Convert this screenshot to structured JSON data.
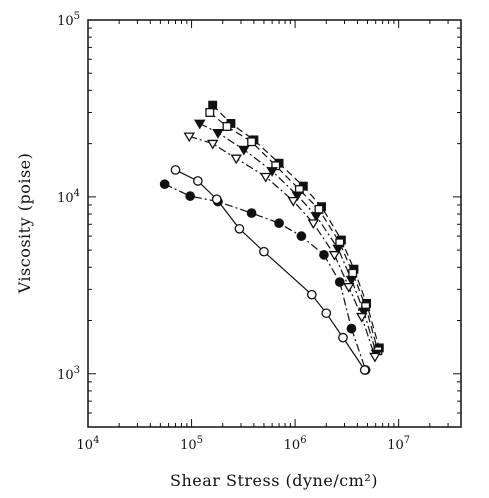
{
  "chart_data": {
    "type": "scatter",
    "xlabel": "Shear Stress (dyne/cm²)",
    "ylabel": "Viscosity (poise)",
    "xscale": "log",
    "yscale": "log",
    "xlim": [
      10000,
      40000000
    ],
    "ylim": [
      500,
      100000
    ],
    "x_ticks": [
      {
        "value": 10000,
        "base": "10",
        "exp": "4"
      },
      {
        "value": 100000,
        "base": "10",
        "exp": "5"
      },
      {
        "value": 1000000,
        "base": "10",
        "exp": "6"
      },
      {
        "value": 10000000,
        "base": "10",
        "exp": "7"
      }
    ],
    "y_ticks": [
      {
        "value": 1000,
        "base": "10",
        "exp": "3"
      },
      {
        "value": 10000,
        "base": "10",
        "exp": "4"
      },
      {
        "value": 100000,
        "base": "10",
        "exp": "5"
      }
    ],
    "grid": false,
    "series": [
      {
        "marker": "square-filled",
        "line": "dashed",
        "x": [
          160000,
          240000,
          400000,
          700000,
          1200000,
          1800000,
          2800000,
          3700000,
          4900000,
          6500000
        ],
        "y": [
          33000,
          26000,
          21000,
          15500,
          11500,
          8800,
          5700,
          3900,
          2500,
          1400
        ]
      },
      {
        "marker": "square-open",
        "line": "dashed",
        "x": [
          150000,
          220000,
          380000,
          650000,
          1100000,
          1700000,
          2700000,
          3600000,
          4800000,
          6300000
        ],
        "y": [
          30000,
          25000,
          20500,
          15000,
          11000,
          8500,
          5500,
          3700,
          2400,
          1350
        ]
      },
      {
        "marker": "triangle-down-filled",
        "line": "dash-dot",
        "x": [
          120000,
          180000,
          320000,
          600000,
          1050000,
          1600000,
          2600000,
          3500000,
          4600000,
          6100000
        ],
        "y": [
          26000,
          23000,
          18500,
          14000,
          10200,
          7800,
          5100,
          3400,
          2250,
          1300
        ]
      },
      {
        "marker": "triangle-down-open",
        "line": "dash-dot",
        "x": [
          95000,
          160000,
          270000,
          520000,
          960000,
          1500000,
          2400000,
          3300000,
          4400000,
          5900000
        ],
        "y": [
          22000,
          20000,
          16500,
          13000,
          9500,
          7100,
          4700,
          3100,
          2100,
          1250
        ]
      },
      {
        "marker": "circle-filled",
        "line": "dash-dot",
        "x": [
          55000,
          97000,
          180000,
          380000,
          700000,
          1150000,
          1900000,
          2700000,
          3500000,
          4800000
        ],
        "y": [
          11800,
          10100,
          9400,
          8100,
          7100,
          6000,
          4700,
          3300,
          1800,
          1050
        ]
      },
      {
        "marker": "circle-open",
        "line": "solid",
        "x": [
          70000,
          115000,
          175000,
          290000,
          500000,
          1450000,
          2000000,
          2900000,
          4700000
        ],
        "y": [
          14200,
          12300,
          9700,
          6600,
          4900,
          2800,
          2200,
          1600,
          1050
        ]
      }
    ]
  }
}
